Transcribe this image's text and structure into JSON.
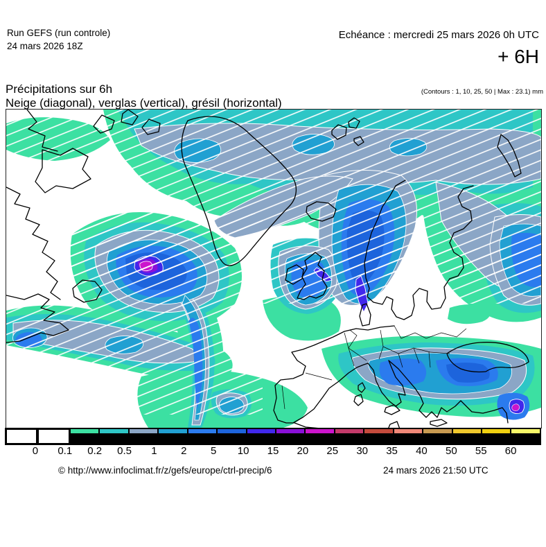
{
  "header": {
    "run_line1": "Run GEFS (run controle)",
    "run_line2": "24 mars 2026 18Z",
    "echeance": "Echéance : mercredi 25 mars 2026 0h UTC",
    "step": "+ 6H"
  },
  "title": {
    "line1": "Précipitations sur 6h",
    "line2": "Neige (diagonal), verglas (vertical), grésil (horizontal)",
    "contours_note": "(Contours : 1, 10, 25, 50 | Max : 23.1) mm"
  },
  "colorbar": {
    "unit": "mm",
    "labels": [
      "0",
      "0.1",
      "0.2",
      "0.5",
      "1",
      "2",
      "5",
      "10",
      "15",
      "20",
      "25",
      "30",
      "35",
      "40",
      "50",
      "55",
      "60"
    ],
    "cell_colors": [
      "#ffffff",
      "#ffffff",
      "#3ce0a2",
      "#2ec6c6",
      "#8ba6c6",
      "#21a0d2",
      "#2b7bee",
      "#1d64dc",
      "#4128ec",
      "#8a10d8",
      "#cc14cc",
      "#c43a6a",
      "#c44a3c",
      "#f08878",
      "#c89a50",
      "#f0c82c",
      "#f0d010",
      "#f8f868"
    ],
    "max_value": "23.1"
  },
  "map": {
    "field": "precipitation-6h",
    "hatch_meaning": {
      "diagonal": "neige",
      "vertical": "verglas",
      "horizontal": "grésil"
    }
  },
  "footer": {
    "source": "© http://www.infoclimat.fr/z/gefs/europe/ctrl-precip/6",
    "generated": "24 mars 2026 21:50 UTC"
  }
}
